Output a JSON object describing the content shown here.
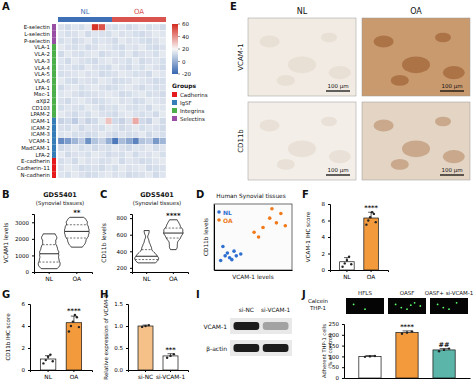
{
  "chart_data": [
    {
      "type": "heatmap",
      "panel": "A",
      "rows": [
        "E-selectin",
        "L-selectin",
        "P-selectin",
        "VLA-1",
        "VLA-2",
        "VLA-3",
        "VLA-4",
        "VLA-5",
        "VLA-6",
        "LFA-1",
        "Mac-1",
        "αXβ2",
        "CD103",
        "LPAM-2",
        "ICAM-1",
        "ICAM-2",
        "ICAM-3",
        "VCAM-1",
        "MadCAM-1",
        "LFA-2",
        "E-cadherin",
        "Cadherin-11",
        "N-cadherin"
      ],
      "row_groups": [
        "Selectins",
        "Selectins",
        "Selectins",
        "Integrins",
        "Integrins",
        "Integrins",
        "Integrins",
        "Integrins",
        "Integrins",
        "Integrins",
        "Integrins",
        "Integrins",
        "Integrins",
        "Integrins",
        "IgSF",
        "IgSF",
        "IgSF",
        "IgSF",
        "IgSF",
        "IgSF",
        "Cadherins",
        "Cadherins",
        "Cadherins"
      ],
      "column_groups": [
        {
          "name": "NL",
          "color": "#3f6fb5",
          "count": 8
        },
        {
          "name": "OA",
          "color": "#d9534f",
          "count": 8
        }
      ],
      "legend_title": "Groups",
      "groups": [
        {
          "name": "Cadherins",
          "color": "#e41a1c"
        },
        {
          "name": "IgSF",
          "color": "#377eb8"
        },
        {
          "name": "Integrins",
          "color": "#4daf4a"
        },
        {
          "name": "Selectins",
          "color": "#984ea3"
        }
      ],
      "colorbar": {
        "range": [
          -20,
          60
        ],
        "ticks": [
          60,
          40,
          20,
          0,
          -20
        ]
      },
      "values": [
        [
          14,
          12,
          15,
          13,
          16,
          58,
          52,
          14,
          13,
          15,
          12,
          14,
          16,
          13,
          15,
          12
        ],
        [
          15,
          13,
          14,
          16,
          12,
          15,
          14,
          13,
          16,
          14,
          15,
          13,
          12,
          14,
          16,
          15
        ],
        [
          13,
          15,
          12,
          14,
          16,
          13,
          15,
          14,
          12,
          16,
          14,
          15,
          13,
          12,
          14,
          16
        ],
        [
          16,
          14,
          13,
          15,
          12,
          14,
          16,
          15,
          13,
          12,
          15,
          14,
          16,
          13,
          12,
          14
        ],
        [
          12,
          16,
          14,
          13,
          15,
          16,
          12,
          14,
          15,
          13,
          16,
          12,
          14,
          15,
          13,
          16
        ],
        [
          15,
          12,
          16,
          14,
          13,
          12,
          15,
          16,
          14,
          15,
          13,
          16,
          12,
          14,
          15,
          13
        ],
        [
          14,
          15,
          13,
          12,
          16,
          14,
          13,
          12,
          16,
          14,
          12,
          15,
          13,
          16,
          14,
          12
        ],
        [
          13,
          14,
          15,
          16,
          14,
          15,
          12,
          13,
          14,
          16,
          15,
          13,
          14,
          12,
          16,
          15
        ],
        [
          16,
          13,
          12,
          15,
          14,
          13,
          16,
          15,
          12,
          13,
          14,
          16,
          15,
          14,
          12,
          13
        ],
        [
          12,
          15,
          16,
          13,
          15,
          16,
          14,
          12,
          13,
          15,
          16,
          14,
          12,
          15,
          13,
          14
        ],
        [
          15,
          16,
          14,
          12,
          13,
          14,
          15,
          16,
          15,
          12,
          13,
          15,
          16,
          13,
          14,
          12
        ],
        [
          14,
          12,
          15,
          16,
          14,
          12,
          13,
          15,
          16,
          14,
          15,
          12,
          13,
          16,
          15,
          14
        ],
        [
          13,
          15,
          14,
          13,
          16,
          15,
          12,
          14,
          13,
          16,
          14,
          13,
          15,
          12,
          16,
          15
        ],
        [
          16,
          14,
          12,
          15,
          13,
          16,
          14,
          13,
          12,
          15,
          16,
          14,
          13,
          15,
          12,
          16
        ],
        [
          10,
          12,
          8,
          14,
          10,
          12,
          16,
          30,
          12,
          10,
          14,
          35,
          12,
          10,
          16,
          12
        ],
        [
          14,
          13,
          16,
          12,
          15,
          14,
          13,
          16,
          15,
          12,
          14,
          16,
          13,
          15,
          14,
          12
        ],
        [
          15,
          16,
          13,
          14,
          12,
          13,
          16,
          14,
          12,
          15,
          13,
          14,
          16,
          12,
          15,
          13
        ],
        [
          -10,
          -5,
          2,
          8,
          -8,
          6,
          10,
          0,
          -15,
          4,
          -2,
          -12,
          6,
          8,
          -6,
          2
        ],
        [
          12,
          14,
          16,
          13,
          15,
          12,
          14,
          13,
          16,
          14,
          12,
          15,
          14,
          16,
          13,
          15
        ],
        [
          16,
          12,
          14,
          15,
          13,
          16,
          15,
          12,
          14,
          13,
          16,
          12,
          15,
          14,
          16,
          13
        ],
        [
          13,
          15,
          12,
          16,
          14,
          15,
          13,
          14,
          16,
          12,
          15,
          14,
          12,
          13,
          15,
          16
        ],
        [
          14,
          16,
          15,
          12,
          13,
          14,
          12,
          15,
          13,
          16,
          14,
          15,
          16,
          12,
          13,
          14
        ],
        [
          15,
          13,
          16,
          14,
          12,
          13,
          15,
          16,
          14,
          15,
          12,
          13,
          14,
          16,
          12,
          15
        ]
      ]
    },
    {
      "type": "image_grid",
      "panel": "E",
      "columns": [
        "NL",
        "OA"
      ],
      "rows": [
        "VCAM-1",
        "CD11b"
      ],
      "scale_bar": "100 μm"
    },
    {
      "type": "violin",
      "panel": "B",
      "title": "GDS5401",
      "subtitle": "(Synovial tissues)",
      "y_label": "VCAM1 levels",
      "categories": [
        "NL",
        "OA"
      ],
      "values": [
        [
          200,
          350,
          500,
          700,
          900,
          1100,
          1300,
          1500,
          1800,
          2100,
          2300
        ],
        [
          1500,
          1800,
          2000,
          2200,
          2400,
          2500,
          2700,
          2900,
          3100,
          3300
        ]
      ],
      "annotations": [
        null,
        "**"
      ],
      "ylim": [
        0,
        3500
      ],
      "yticks": [
        0,
        1000,
        2000,
        3000
      ],
      "color": "#ffffff"
    },
    {
      "type": "violin",
      "panel": "C",
      "title": "GDS5401",
      "subtitle": "(Synovial tissues)",
      "y_label": "CD11b levels",
      "categories": [
        "NL",
        "OA"
      ],
      "values": [
        [
          260,
          280,
          300,
          320,
          340,
          380,
          420,
          500,
          650
        ],
        [
          420,
          500,
          560,
          600,
          620,
          650,
          680,
          720,
          780
        ]
      ],
      "annotations": [
        null,
        "****"
      ],
      "ylim": [
        150,
        850
      ],
      "yticks": [
        200,
        400,
        600,
        800
      ],
      "color": "#ffffff"
    },
    {
      "type": "scatter",
      "panel": "D",
      "title": "Human Synovial tissues",
      "x_label": "VCAM-1 levels",
      "y_label": "CD11b levels",
      "xlim": [
        0,
        3500
      ],
      "ylim": [
        150,
        850
      ],
      "tick_labels": false,
      "legend": "upper left",
      "series": [
        {
          "name": "NL",
          "color": "#2f6fd0",
          "x": [
            300,
            500,
            700,
            900,
            1200,
            400,
            800,
            1000,
            600
          ],
          "values": [
            250,
            300,
            280,
            350,
            320,
            400,
            260,
            300,
            330
          ]
        },
        {
          "name": "OA",
          "color": "#f07a1a",
          "x": [
            1800,
            2200,
            2500,
            2800,
            3000,
            2000,
            2600,
            3200
          ],
          "values": [
            550,
            600,
            700,
            650,
            750,
            500,
            800,
            620
          ]
        }
      ]
    },
    {
      "type": "bar",
      "panel": "F",
      "y_label": "VCAM-1 IHC score",
      "categories": [
        "NL",
        "OA"
      ],
      "values": [
        1.0,
        6.3
      ],
      "errors": [
        0.5,
        0.7
      ],
      "points": [
        [
          0.4,
          0.8,
          1.2,
          1.6,
          0.7
        ],
        [
          5.5,
          6.0,
          6.4,
          7.0,
          6.8,
          5.8
        ]
      ],
      "annotations": [
        null,
        "****"
      ],
      "colors": [
        "#ffffff",
        "#f39a3d"
      ],
      "ylim": [
        0,
        8
      ],
      "yticks": [
        0,
        2,
        4,
        6,
        8
      ]
    },
    {
      "type": "bar",
      "panel": "G",
      "y_label": "CD11b IHC score",
      "categories": [
        "NL",
        "OA"
      ],
      "values": [
        1.0,
        4.3
      ],
      "errors": [
        0.3,
        0.6
      ],
      "points": [
        [
          0.6,
          0.9,
          1.2,
          1.4,
          0.8
        ],
        [
          3.5,
          4.0,
          4.4,
          5.0,
          4.8,
          3.9
        ]
      ],
      "annotations": [
        null,
        "****"
      ],
      "colors": [
        "#ffffff",
        "#f39a3d"
      ],
      "ylim": [
        0,
        6
      ],
      "yticks": [
        0,
        2,
        4,
        6
      ]
    },
    {
      "type": "bar",
      "panel": "H",
      "y_label": "Relative expression of VCAM-1",
      "categories": [
        "si-NC",
        "si-VCAM-1"
      ],
      "values": [
        1.0,
        0.32
      ],
      "errors": [
        0.02,
        0.05
      ],
      "points": [
        [
          0.98,
          1.0,
          1.02
        ],
        [
          0.28,
          0.32,
          0.36
        ]
      ],
      "annotations": [
        null,
        "***"
      ],
      "colors": [
        "#f6c089",
        "#ffffff"
      ],
      "ylim": [
        0,
        1.5
      ],
      "yticks": [
        {
          "value": 0,
          "label": "0.0"
        },
        {
          "value": 0.5,
          "label": "0.5"
        },
        {
          "value": 1,
          "label": "1.0"
        },
        {
          "value": 1.5,
          "label": "1.5"
        }
      ]
    },
    {
      "type": "blot",
      "panel": "I",
      "lanes": [
        "si-NC",
        "si-VCAM-1"
      ],
      "rows": [
        "VCAM-1",
        "β-actin"
      ],
      "values": [
        [
          1,
          0.3
        ],
        [
          1,
          1
        ]
      ]
    },
    {
      "type": "bar",
      "panel": "J",
      "image_label": [
        "Calcein",
        "THP-1"
      ],
      "y_label": [
        "Adherent THP-1 cells",
        "(% of control)"
      ],
      "categories": [
        "HFLS",
        "OASF",
        "OASF+ si-VCAM-1"
      ],
      "values": [
        100,
        210,
        130
      ],
      "errors": [
        4,
        8,
        6
      ],
      "points": [
        [
          98,
          100,
          102
        ],
        [
          205,
          210,
          216
        ],
        [
          124,
          130,
          136
        ]
      ],
      "annotations": [
        null,
        "****",
        "##"
      ],
      "colors": [
        "#ffffff",
        "#f39a3d",
        "#5bb5a8"
      ],
      "ylim": [
        0,
        250
      ],
      "yticks": [
        0,
        50,
        100,
        150,
        200,
        250
      ],
      "tick_labels": "y"
    }
  ]
}
